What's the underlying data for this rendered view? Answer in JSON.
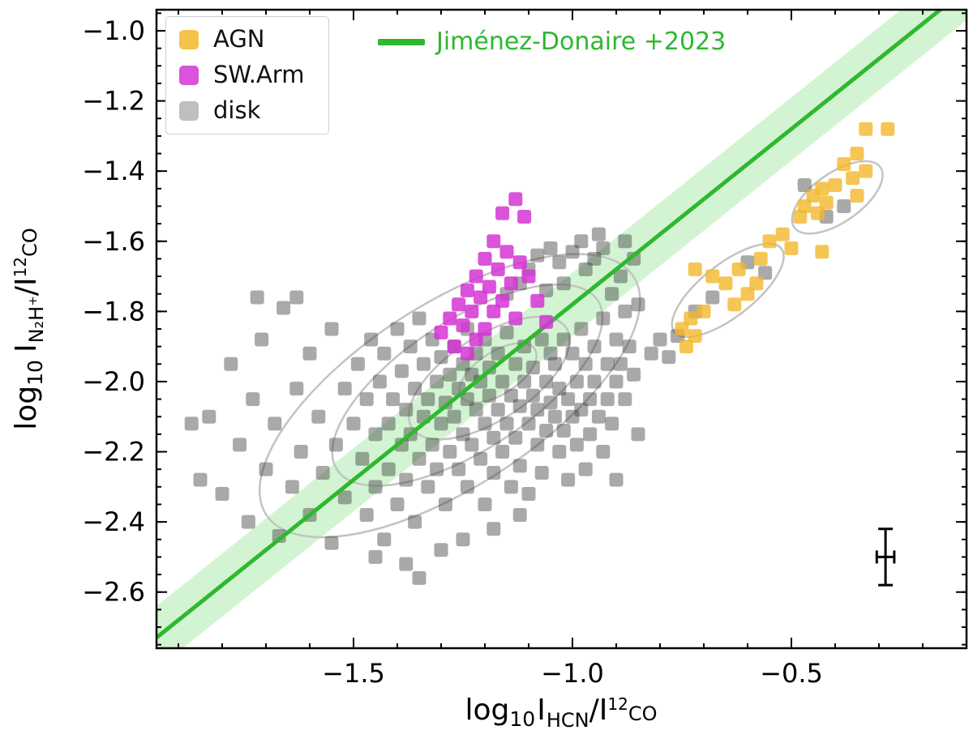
{
  "chart_data": {
    "type": "scatter",
    "xlim": [
      -1.95,
      -0.1
    ],
    "ylim": [
      -2.76,
      -0.94
    ],
    "xlabel_parts": {
      "p1": "log",
      "p2": "10",
      "p3": "I",
      "p4": "HCN",
      "p5": "/I",
      "p6": "12",
      "p7": "CO"
    },
    "ylabel_parts": {
      "p1": "log",
      "p2": "10",
      "p3": "I",
      "p4": "N₂H⁺",
      "p5": "/I",
      "p6": "12",
      "p7": "CO"
    },
    "xticks": {
      "values": [
        -1.5,
        -1.0,
        -0.5
      ],
      "labels": [
        "−1.5",
        "−1.0",
        "−0.5"
      ],
      "minor_step": 0.1
    },
    "yticks": {
      "values": [
        -1.0,
        -1.2,
        -1.4,
        -1.6,
        -1.8,
        -2.0,
        -2.2,
        -2.4,
        -2.6
      ],
      "labels": [
        "−1.0",
        "−1.2",
        "−1.4",
        "−1.6",
        "−1.8",
        "−2.0",
        "−2.2",
        "−2.4",
        "−2.6"
      ],
      "minor_step": 0.05
    },
    "fit_line": {
      "label": "Jiménez-Donaire +2023",
      "color": "#2eb82e",
      "band_color": "#32cd32",
      "band_opacity": 0.22,
      "slope": 1.0,
      "intercept": -0.78,
      "band_halfwidth": 0.09
    },
    "contours": {
      "color": "#c3c3c3",
      "width": 2.5,
      "ellipses": [
        {
          "cx": -1.28,
          "cy": -2.04,
          "rx": 0.5,
          "ry": 0.26,
          "rot": -33
        },
        {
          "cx": -1.24,
          "cy": -2.01,
          "rx": 0.355,
          "ry": 0.185,
          "rot": -33
        },
        {
          "cx": -1.19,
          "cy": -1.99,
          "rx": 0.21,
          "ry": 0.12,
          "rot": -33
        },
        {
          "cx": -1.17,
          "cy": -1.975,
          "rx": 0.1,
          "ry": 0.06,
          "rot": -33
        },
        {
          "cx": -0.645,
          "cy": -1.74,
          "rx": 0.155,
          "ry": 0.075,
          "rot": -38
        },
        {
          "cx": -0.395,
          "cy": -1.475,
          "rx": 0.12,
          "ry": 0.07,
          "rot": -35
        }
      ]
    },
    "errorbar": {
      "x": -0.285,
      "y": -2.5,
      "xerr": 0.02,
      "yerr": 0.08,
      "color": "#000000"
    },
    "series": [
      {
        "name": "disk",
        "marker": "square",
        "color": "#404040",
        "opacity": 0.45,
        "points": [
          [
            -1.87,
            -2.12
          ],
          [
            -1.85,
            -2.28
          ],
          [
            -1.83,
            -2.1
          ],
          [
            -1.8,
            -2.32
          ],
          [
            -1.78,
            -1.95
          ],
          [
            -1.76,
            -2.18
          ],
          [
            -1.74,
            -2.4
          ],
          [
            -1.73,
            -2.05
          ],
          [
            -1.72,
            -1.76
          ],
          [
            -1.71,
            -1.88
          ],
          [
            -1.7,
            -2.25
          ],
          [
            -1.68,
            -2.12
          ],
          [
            -1.67,
            -2.44
          ],
          [
            -1.66,
            -1.79
          ],
          [
            -1.64,
            -2.3
          ],
          [
            -1.63,
            -1.76
          ],
          [
            -1.63,
            -2.02
          ],
          [
            -1.62,
            -2.2
          ],
          [
            -1.6,
            -1.92
          ],
          [
            -1.6,
            -2.38
          ],
          [
            -1.58,
            -2.1
          ],
          [
            -1.57,
            -2.26
          ],
          [
            -1.55,
            -1.85
          ],
          [
            -1.55,
            -2.46
          ],
          [
            -1.54,
            -2.18
          ],
          [
            -1.52,
            -2.02
          ],
          [
            -1.52,
            -2.33
          ],
          [
            -1.5,
            -2.12
          ],
          [
            -1.49,
            -1.95
          ],
          [
            -1.48,
            -2.22
          ],
          [
            -1.47,
            -2.05
          ],
          [
            -1.47,
            -2.38
          ],
          [
            -1.46,
            -1.88
          ],
          [
            -1.45,
            -2.15
          ],
          [
            -1.45,
            -2.3
          ],
          [
            -1.44,
            -2.0
          ],
          [
            -1.43,
            -2.45
          ],
          [
            -1.43,
            -1.92
          ],
          [
            -1.42,
            -2.12
          ],
          [
            -1.42,
            -2.25
          ],
          [
            -1.41,
            -2.05
          ],
          [
            -1.4,
            -1.85
          ],
          [
            -1.4,
            -2.35
          ],
          [
            -1.39,
            -2.18
          ],
          [
            -1.39,
            -1.97
          ],
          [
            -1.38,
            -2.08
          ],
          [
            -1.38,
            -2.28
          ],
          [
            -1.37,
            -1.9
          ],
          [
            -1.37,
            -2.15
          ],
          [
            -1.36,
            -2.02
          ],
          [
            -1.36,
            -2.4
          ],
          [
            -1.35,
            -2.22
          ],
          [
            -1.35,
            -1.82
          ],
          [
            -1.34,
            -2.1
          ],
          [
            -1.34,
            -1.95
          ],
          [
            -1.33,
            -2.3
          ],
          [
            -1.33,
            -2.05
          ],
          [
            -1.32,
            -2.18
          ],
          [
            -1.32,
            -1.88
          ],
          [
            -1.31,
            -2.0
          ],
          [
            -1.31,
            -2.25
          ],
          [
            -1.3,
            -2.12
          ],
          [
            -1.3,
            -1.93
          ],
          [
            -1.29,
            -2.35
          ],
          [
            -1.29,
            -2.06
          ],
          [
            -1.28,
            -1.98
          ],
          [
            -1.28,
            -2.2
          ],
          [
            -1.27,
            -2.1
          ],
          [
            -1.27,
            -1.9
          ],
          [
            -1.26,
            -2.02
          ],
          [
            -1.26,
            -2.25
          ],
          [
            -1.25,
            -1.95
          ],
          [
            -1.25,
            -2.15
          ],
          [
            -1.24,
            -2.05
          ],
          [
            -1.24,
            -1.85
          ],
          [
            -1.24,
            -2.3
          ],
          [
            -1.23,
            -1.98
          ],
          [
            -1.23,
            -2.18
          ],
          [
            -1.22,
            -2.08
          ],
          [
            -1.22,
            -1.92
          ],
          [
            -1.21,
            -2.22
          ],
          [
            -1.21,
            -2.0
          ],
          [
            -1.2,
            -2.12
          ],
          [
            -1.2,
            -1.88
          ],
          [
            -1.2,
            -2.35
          ],
          [
            -1.19,
            -2.04
          ],
          [
            -1.19,
            -1.96
          ],
          [
            -1.18,
            -2.16
          ],
          [
            -1.18,
            -2.26
          ],
          [
            -1.17,
            -1.92
          ],
          [
            -1.17,
            -2.08
          ],
          [
            -1.16,
            -2.0
          ],
          [
            -1.16,
            -2.2
          ],
          [
            -1.15,
            -1.86
          ],
          [
            -1.15,
            -2.12
          ],
          [
            -1.14,
            -2.3
          ],
          [
            -1.14,
            -2.04
          ],
          [
            -1.13,
            -1.95
          ],
          [
            -1.13,
            -2.16
          ],
          [
            -1.12,
            -2.07
          ],
          [
            -1.12,
            -2.24
          ],
          [
            -1.11,
            -1.9
          ],
          [
            -1.11,
            -2.0
          ],
          [
            -1.1,
            -2.12
          ],
          [
            -1.1,
            -2.32
          ],
          [
            -1.09,
            -2.04
          ],
          [
            -1.09,
            -1.96
          ],
          [
            -1.08,
            -2.18
          ],
          [
            -1.08,
            -2.08
          ],
          [
            -1.07,
            -1.88
          ],
          [
            -1.07,
            -2.26
          ],
          [
            -1.06,
            -2.0
          ],
          [
            -1.06,
            -2.14
          ],
          [
            -1.05,
            -2.06
          ],
          [
            -1.05,
            -1.92
          ],
          [
            -1.04,
            -2.1
          ],
          [
            -1.04,
            -1.95
          ],
          [
            -1.03,
            -2.2
          ],
          [
            -1.03,
            -2.02
          ],
          [
            -1.02,
            -1.88
          ],
          [
            -1.02,
            -2.14
          ],
          [
            -1.01,
            -2.28
          ],
          [
            -1.01,
            -2.05
          ],
          [
            -1.0,
            -1.92
          ],
          [
            -1.0,
            -2.1
          ],
          [
            -0.99,
            -2.0
          ],
          [
            -0.99,
            -2.18
          ],
          [
            -0.98,
            -1.85
          ],
          [
            -0.98,
            -2.08
          ],
          [
            -0.97,
            -2.25
          ],
          [
            -0.97,
            -1.95
          ],
          [
            -0.96,
            -2.05
          ],
          [
            -0.96,
            -2.15
          ],
          [
            -0.95,
            -1.9
          ],
          [
            -0.95,
            -2.0
          ],
          [
            -0.94,
            -2.1
          ],
          [
            -0.93,
            -1.82
          ],
          [
            -0.93,
            -2.2
          ],
          [
            -0.92,
            -1.95
          ],
          [
            -0.92,
            -2.05
          ],
          [
            -0.91,
            -1.75
          ],
          [
            -0.91,
            -2.12
          ],
          [
            -0.9,
            -1.88
          ],
          [
            -0.9,
            -2.0
          ],
          [
            -0.89,
            -1.7
          ],
          [
            -0.89,
            -1.95
          ],
          [
            -0.88,
            -1.8
          ],
          [
            -0.88,
            -2.05
          ],
          [
            -0.87,
            -1.9
          ],
          [
            -0.86,
            -1.65
          ],
          [
            -0.86,
            -1.98
          ],
          [
            -0.85,
            -1.78
          ],
          [
            -1.15,
            -1.75
          ],
          [
            -1.12,
            -1.72
          ],
          [
            -1.1,
            -1.68
          ],
          [
            -1.08,
            -1.64
          ],
          [
            -1.05,
            -1.62
          ],
          [
            -1.03,
            -1.66
          ],
          [
            -1.0,
            -1.63
          ],
          [
            -0.98,
            -1.6
          ],
          [
            -0.97,
            -1.68
          ],
          [
            -1.02,
            -1.72
          ],
          [
            -1.06,
            -1.74
          ],
          [
            -0.95,
            -1.65
          ],
          [
            -0.94,
            -1.58
          ],
          [
            -0.93,
            -1.62
          ],
          [
            -1.45,
            -2.5
          ],
          [
            -1.38,
            -2.52
          ],
          [
            -1.35,
            -2.56
          ],
          [
            -1.3,
            -2.48
          ],
          [
            -1.25,
            -2.45
          ],
          [
            -1.18,
            -2.42
          ],
          [
            -1.12,
            -2.38
          ],
          [
            -0.9,
            -2.28
          ],
          [
            -0.85,
            -2.15
          ],
          [
            -0.82,
            -1.92
          ],
          [
            -0.8,
            -1.88
          ],
          [
            -0.78,
            -1.93
          ],
          [
            -0.76,
            -1.87
          ],
          [
            -0.88,
            -1.6
          ],
          [
            -0.72,
            -1.8
          ],
          [
            -0.68,
            -1.76
          ],
          [
            -0.6,
            -1.66
          ],
          [
            -0.56,
            -1.69
          ],
          [
            -0.47,
            -1.44
          ],
          [
            -0.42,
            -1.53
          ],
          [
            -0.38,
            -1.5
          ]
        ]
      },
      {
        "name": "SW.Arm",
        "marker": "square",
        "color": "#d435d4",
        "opacity": 0.85,
        "points": [
          [
            -1.13,
            -1.48
          ],
          [
            -1.16,
            -1.52
          ],
          [
            -1.11,
            -1.53
          ],
          [
            -1.18,
            -1.6
          ],
          [
            -1.15,
            -1.63
          ],
          [
            -1.2,
            -1.65
          ],
          [
            -1.12,
            -1.66
          ],
          [
            -1.17,
            -1.68
          ],
          [
            -1.22,
            -1.7
          ],
          [
            -1.1,
            -1.7
          ],
          [
            -1.14,
            -1.72
          ],
          [
            -1.19,
            -1.73
          ],
          [
            -1.24,
            -1.74
          ],
          [
            -1.21,
            -1.76
          ],
          [
            -1.16,
            -1.77
          ],
          [
            -1.26,
            -1.78
          ],
          [
            -1.23,
            -1.8
          ],
          [
            -1.18,
            -1.8
          ],
          [
            -1.28,
            -1.82
          ],
          [
            -1.13,
            -1.82
          ],
          [
            -1.25,
            -1.84
          ],
          [
            -1.2,
            -1.85
          ],
          [
            -1.3,
            -1.86
          ],
          [
            -1.22,
            -1.88
          ],
          [
            -1.27,
            -1.9
          ],
          [
            -1.24,
            -1.92
          ],
          [
            -1.08,
            -1.77
          ],
          [
            -1.06,
            -1.83
          ]
        ]
      },
      {
        "name": "AGN",
        "marker": "square",
        "color": "#f2b82a",
        "opacity": 0.8,
        "points": [
          [
            -0.33,
            -1.28
          ],
          [
            -0.28,
            -1.28
          ],
          [
            -0.35,
            -1.35
          ],
          [
            -0.38,
            -1.38
          ],
          [
            -0.33,
            -1.4
          ],
          [
            -0.36,
            -1.42
          ],
          [
            -0.4,
            -1.44
          ],
          [
            -0.43,
            -1.45
          ],
          [
            -0.45,
            -1.47
          ],
          [
            -0.35,
            -1.47
          ],
          [
            -0.42,
            -1.49
          ],
          [
            -0.47,
            -1.5
          ],
          [
            -0.44,
            -1.52
          ],
          [
            -0.48,
            -1.53
          ],
          [
            -0.52,
            -1.58
          ],
          [
            -0.55,
            -1.6
          ],
          [
            -0.5,
            -1.62
          ],
          [
            -0.43,
            -1.63
          ],
          [
            -0.57,
            -1.65
          ],
          [
            -0.62,
            -1.68
          ],
          [
            -0.65,
            -1.72
          ],
          [
            -0.68,
            -1.7
          ],
          [
            -0.72,
            -1.68
          ],
          [
            -0.58,
            -1.72
          ],
          [
            -0.6,
            -1.75
          ],
          [
            -0.63,
            -1.78
          ],
          [
            -0.7,
            -1.8
          ],
          [
            -0.73,
            -1.82
          ],
          [
            -0.75,
            -1.85
          ],
          [
            -0.72,
            -1.87
          ],
          [
            -0.74,
            -1.9
          ]
        ]
      }
    ]
  },
  "legend": {
    "items": [
      {
        "label": "AGN",
        "color": "#f2b82a"
      },
      {
        "label": "SW.Arm",
        "color": "#d435d4"
      },
      {
        "label": "disk",
        "color": "#b4b4b4"
      }
    ]
  }
}
